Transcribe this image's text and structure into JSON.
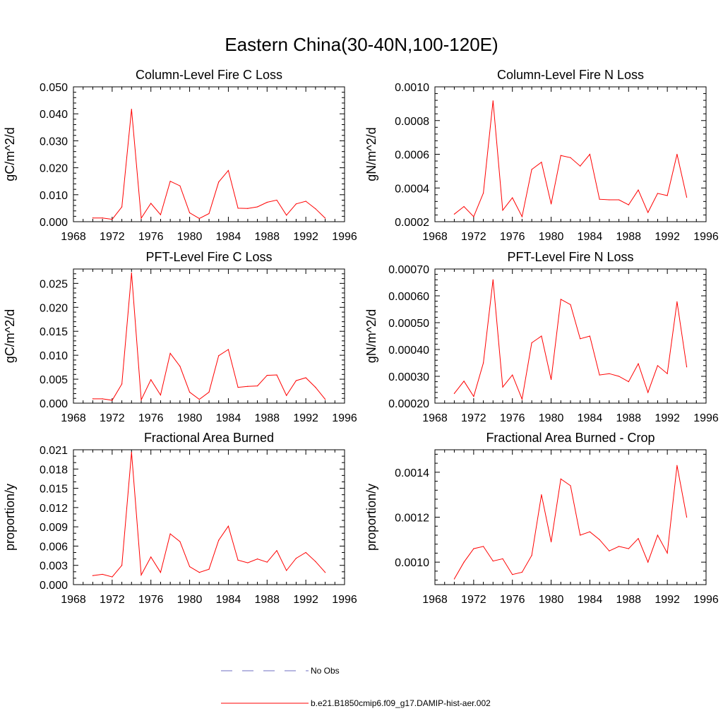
{
  "title": "Eastern China(30-40N,100-120E)",
  "line_color": "#ff0000",
  "legend": [
    {
      "label": "No Obs",
      "color": "#6f6fc0",
      "style": "dashed"
    },
    {
      "label": "b.e21.B1850cmip6.f09_g17.DAMIP-hist-aer.002",
      "color": "#ff0000",
      "style": "solid"
    }
  ],
  "chart_data": [
    {
      "type": "line",
      "title": "Column-Level Fire C Loss",
      "ylabel": "gC/m^2/d",
      "xlim": [
        1968,
        1996
      ],
      "xticks": [
        "1968",
        "1972",
        "1976",
        "1980",
        "1984",
        "1988",
        "1992",
        "1996"
      ],
      "ylim": [
        0,
        0.05
      ],
      "yticks": [
        0,
        0.01,
        0.02,
        0.03,
        0.04,
        0.05
      ],
      "ytick_labels": [
        "0.000",
        "0.010",
        "0.020",
        "0.030",
        "0.040",
        "0.050"
      ],
      "yminor": 4,
      "x": [
        1970,
        1971,
        1972,
        1973,
        1974,
        1975,
        1976,
        1977,
        1978,
        1979,
        1980,
        1981,
        1982,
        1983,
        1984,
        1985,
        1986,
        1987,
        1988,
        1989,
        1990,
        1991,
        1992,
        1993,
        1994
      ],
      "series": [
        {
          "values": [
            0.0014,
            0.0014,
            0.0009,
            0.0055,
            0.0417,
            0.0013,
            0.0068,
            0.0026,
            0.015,
            0.0133,
            0.0033,
            0.0012,
            0.003,
            0.0147,
            0.019,
            0.005,
            0.0049,
            0.0055,
            0.0072,
            0.008,
            0.0024,
            0.0066,
            0.0076,
            0.0048,
            0.0013
          ]
        }
      ]
    },
    {
      "type": "line",
      "title": "Column-Level Fire N Loss",
      "ylabel": "gN/m^2/d",
      "xlim": [
        1968,
        1996
      ],
      "xticks": [
        "1968",
        "1972",
        "1976",
        "1980",
        "1984",
        "1988",
        "1992",
        "1996"
      ],
      "ylim": [
        0.0002,
        0.001
      ],
      "yticks": [
        0.0002,
        0.0004,
        0.0006,
        0.0008,
        0.001
      ],
      "ytick_labels": [
        "0.0002",
        "0.0004",
        "0.0006",
        "0.0008",
        "0.0010"
      ],
      "yminor": 4,
      "x": [
        1970,
        1971,
        1972,
        1973,
        1974,
        1975,
        1976,
        1977,
        1978,
        1979,
        1980,
        1981,
        1982,
        1983,
        1984,
        1985,
        1986,
        1987,
        1988,
        1989,
        1990,
        1991,
        1992,
        1993,
        1994
      ],
      "series": [
        {
          "values": [
            0.000245,
            0.00029,
            0.00023,
            0.00037,
            0.000917,
            0.000268,
            0.000342,
            0.00023,
            0.00051,
            0.000553,
            0.000305,
            0.000593,
            0.00058,
            0.00053,
            0.0006,
            0.000333,
            0.00033,
            0.00033,
            0.0003,
            0.000388,
            0.000255,
            0.000368,
            0.000355,
            0.0006,
            0.000345
          ]
        }
      ]
    },
    {
      "type": "line",
      "title": "PFT-Level Fire C Loss",
      "ylabel": "gC/m^2/d",
      "xlim": [
        1968,
        1996
      ],
      "xticks": [
        "1968",
        "1972",
        "1976",
        "1980",
        "1984",
        "1988",
        "1992",
        "1996"
      ],
      "ylim": [
        0,
        0.028
      ],
      "yticks": [
        0,
        0.005,
        0.01,
        0.015,
        0.02,
        0.025
      ],
      "ytick_labels": [
        "0.000",
        "0.005",
        "0.010",
        "0.015",
        "0.020",
        "0.025"
      ],
      "yminor": 4,
      "x": [
        1970,
        1971,
        1972,
        1973,
        1974,
        1975,
        1976,
        1977,
        1978,
        1979,
        1980,
        1981,
        1982,
        1983,
        1984,
        1985,
        1986,
        1987,
        1988,
        1989,
        1990,
        1991,
        1992,
        1993,
        1994
      ],
      "series": [
        {
          "values": [
            0.0009,
            0.0009,
            0.0006,
            0.004,
            0.0272,
            0.0007,
            0.0049,
            0.0017,
            0.0104,
            0.0077,
            0.0023,
            0.0008,
            0.0023,
            0.0099,
            0.0112,
            0.0033,
            0.0035,
            0.0036,
            0.0058,
            0.0059,
            0.0016,
            0.0047,
            0.0053,
            0.0033,
            0.0008
          ]
        }
      ]
    },
    {
      "type": "line",
      "title": "PFT-Level Fire N Loss",
      "ylabel": "gN/m^2/d",
      "xlim": [
        1968,
        1996
      ],
      "xticks": [
        "1968",
        "1972",
        "1976",
        "1980",
        "1984",
        "1988",
        "1992",
        "1996"
      ],
      "ylim": [
        0.0002,
        0.0007
      ],
      "yticks": [
        0.0002,
        0.0003,
        0.0004,
        0.0005,
        0.0006,
        0.0007
      ],
      "ytick_labels": [
        "0.00020",
        "0.00030",
        "0.00040",
        "0.00050",
        "0.00060",
        "0.00070"
      ],
      "yminor": 4,
      "x": [
        1970,
        1971,
        1972,
        1973,
        1974,
        1975,
        1976,
        1977,
        1978,
        1979,
        1980,
        1981,
        1982,
        1983,
        1984,
        1985,
        1986,
        1987,
        1988,
        1989,
        1990,
        1991,
        1992,
        1993,
        1994
      ],
      "series": [
        {
          "values": [
            0.000236,
            0.000282,
            0.000225,
            0.00035,
            0.00066,
            0.00026,
            0.000305,
            0.000215,
            0.000425,
            0.00045,
            0.000288,
            0.000587,
            0.000567,
            0.00044,
            0.00045,
            0.000305,
            0.00031,
            0.0003,
            0.00028,
            0.000347,
            0.00024,
            0.00034,
            0.00031,
            0.000578,
            0.000335
          ]
        }
      ]
    },
    {
      "type": "line",
      "title": "Fractional Area Burned",
      "ylabel": "proportion/y",
      "xlim": [
        1968,
        1996
      ],
      "xticks": [
        "1968",
        "1972",
        "1976",
        "1980",
        "1984",
        "1988",
        "1992",
        "1996"
      ],
      "ylim": [
        0,
        0.021
      ],
      "yticks": [
        0,
        0.003,
        0.006,
        0.009,
        0.012,
        0.015,
        0.018,
        0.021
      ],
      "ytick_labels": [
        "0.000",
        "0.003",
        "0.006",
        "0.009",
        "0.012",
        "0.015",
        "0.018",
        "0.021"
      ],
      "yminor": 2,
      "x": [
        1970,
        1971,
        1972,
        1973,
        1974,
        1975,
        1976,
        1977,
        1978,
        1979,
        1980,
        1981,
        1982,
        1983,
        1984,
        1985,
        1986,
        1987,
        1988,
        1989,
        1990,
        1991,
        1992,
        1993,
        1994
      ],
      "series": [
        {
          "values": [
            0.0014,
            0.0016,
            0.0012,
            0.003,
            0.0206,
            0.0015,
            0.0043,
            0.0019,
            0.0079,
            0.0067,
            0.0028,
            0.0019,
            0.0024,
            0.0069,
            0.0091,
            0.0038,
            0.0034,
            0.004,
            0.0035,
            0.0053,
            0.0022,
            0.0041,
            0.005,
            0.0036,
            0.0019
          ]
        }
      ]
    },
    {
      "type": "line",
      "title": "Fractional Area Burned - Crop",
      "ylabel": "proportion/y",
      "xlim": [
        1968,
        1996
      ],
      "xticks": [
        "1968",
        "1972",
        "1976",
        "1980",
        "1984",
        "1988",
        "1992",
        "1996"
      ],
      "ylim": [
        0.0009,
        0.0015
      ],
      "yticks": [
        0.001,
        0.0012,
        0.0014
      ],
      "ytick_labels": [
        "0.0010",
        "0.0012",
        "0.0014"
      ],
      "yminor": 4,
      "x": [
        1970,
        1971,
        1972,
        1973,
        1974,
        1975,
        1976,
        1977,
        1978,
        1979,
        1980,
        1981,
        1982,
        1983,
        1984,
        1985,
        1986,
        1987,
        1988,
        1989,
        1990,
        1991,
        1992,
        1993,
        1994
      ],
      "series": [
        {
          "values": [
            0.000925,
            0.001,
            0.00106,
            0.00107,
            0.001005,
            0.001015,
            0.000945,
            0.000955,
            0.00103,
            0.0013,
            0.00109,
            0.00137,
            0.00134,
            0.00112,
            0.001135,
            0.0011,
            0.00105,
            0.00107,
            0.00106,
            0.001105,
            0.001,
            0.00112,
            0.00104,
            0.00143,
            0.0012
          ]
        }
      ]
    }
  ]
}
